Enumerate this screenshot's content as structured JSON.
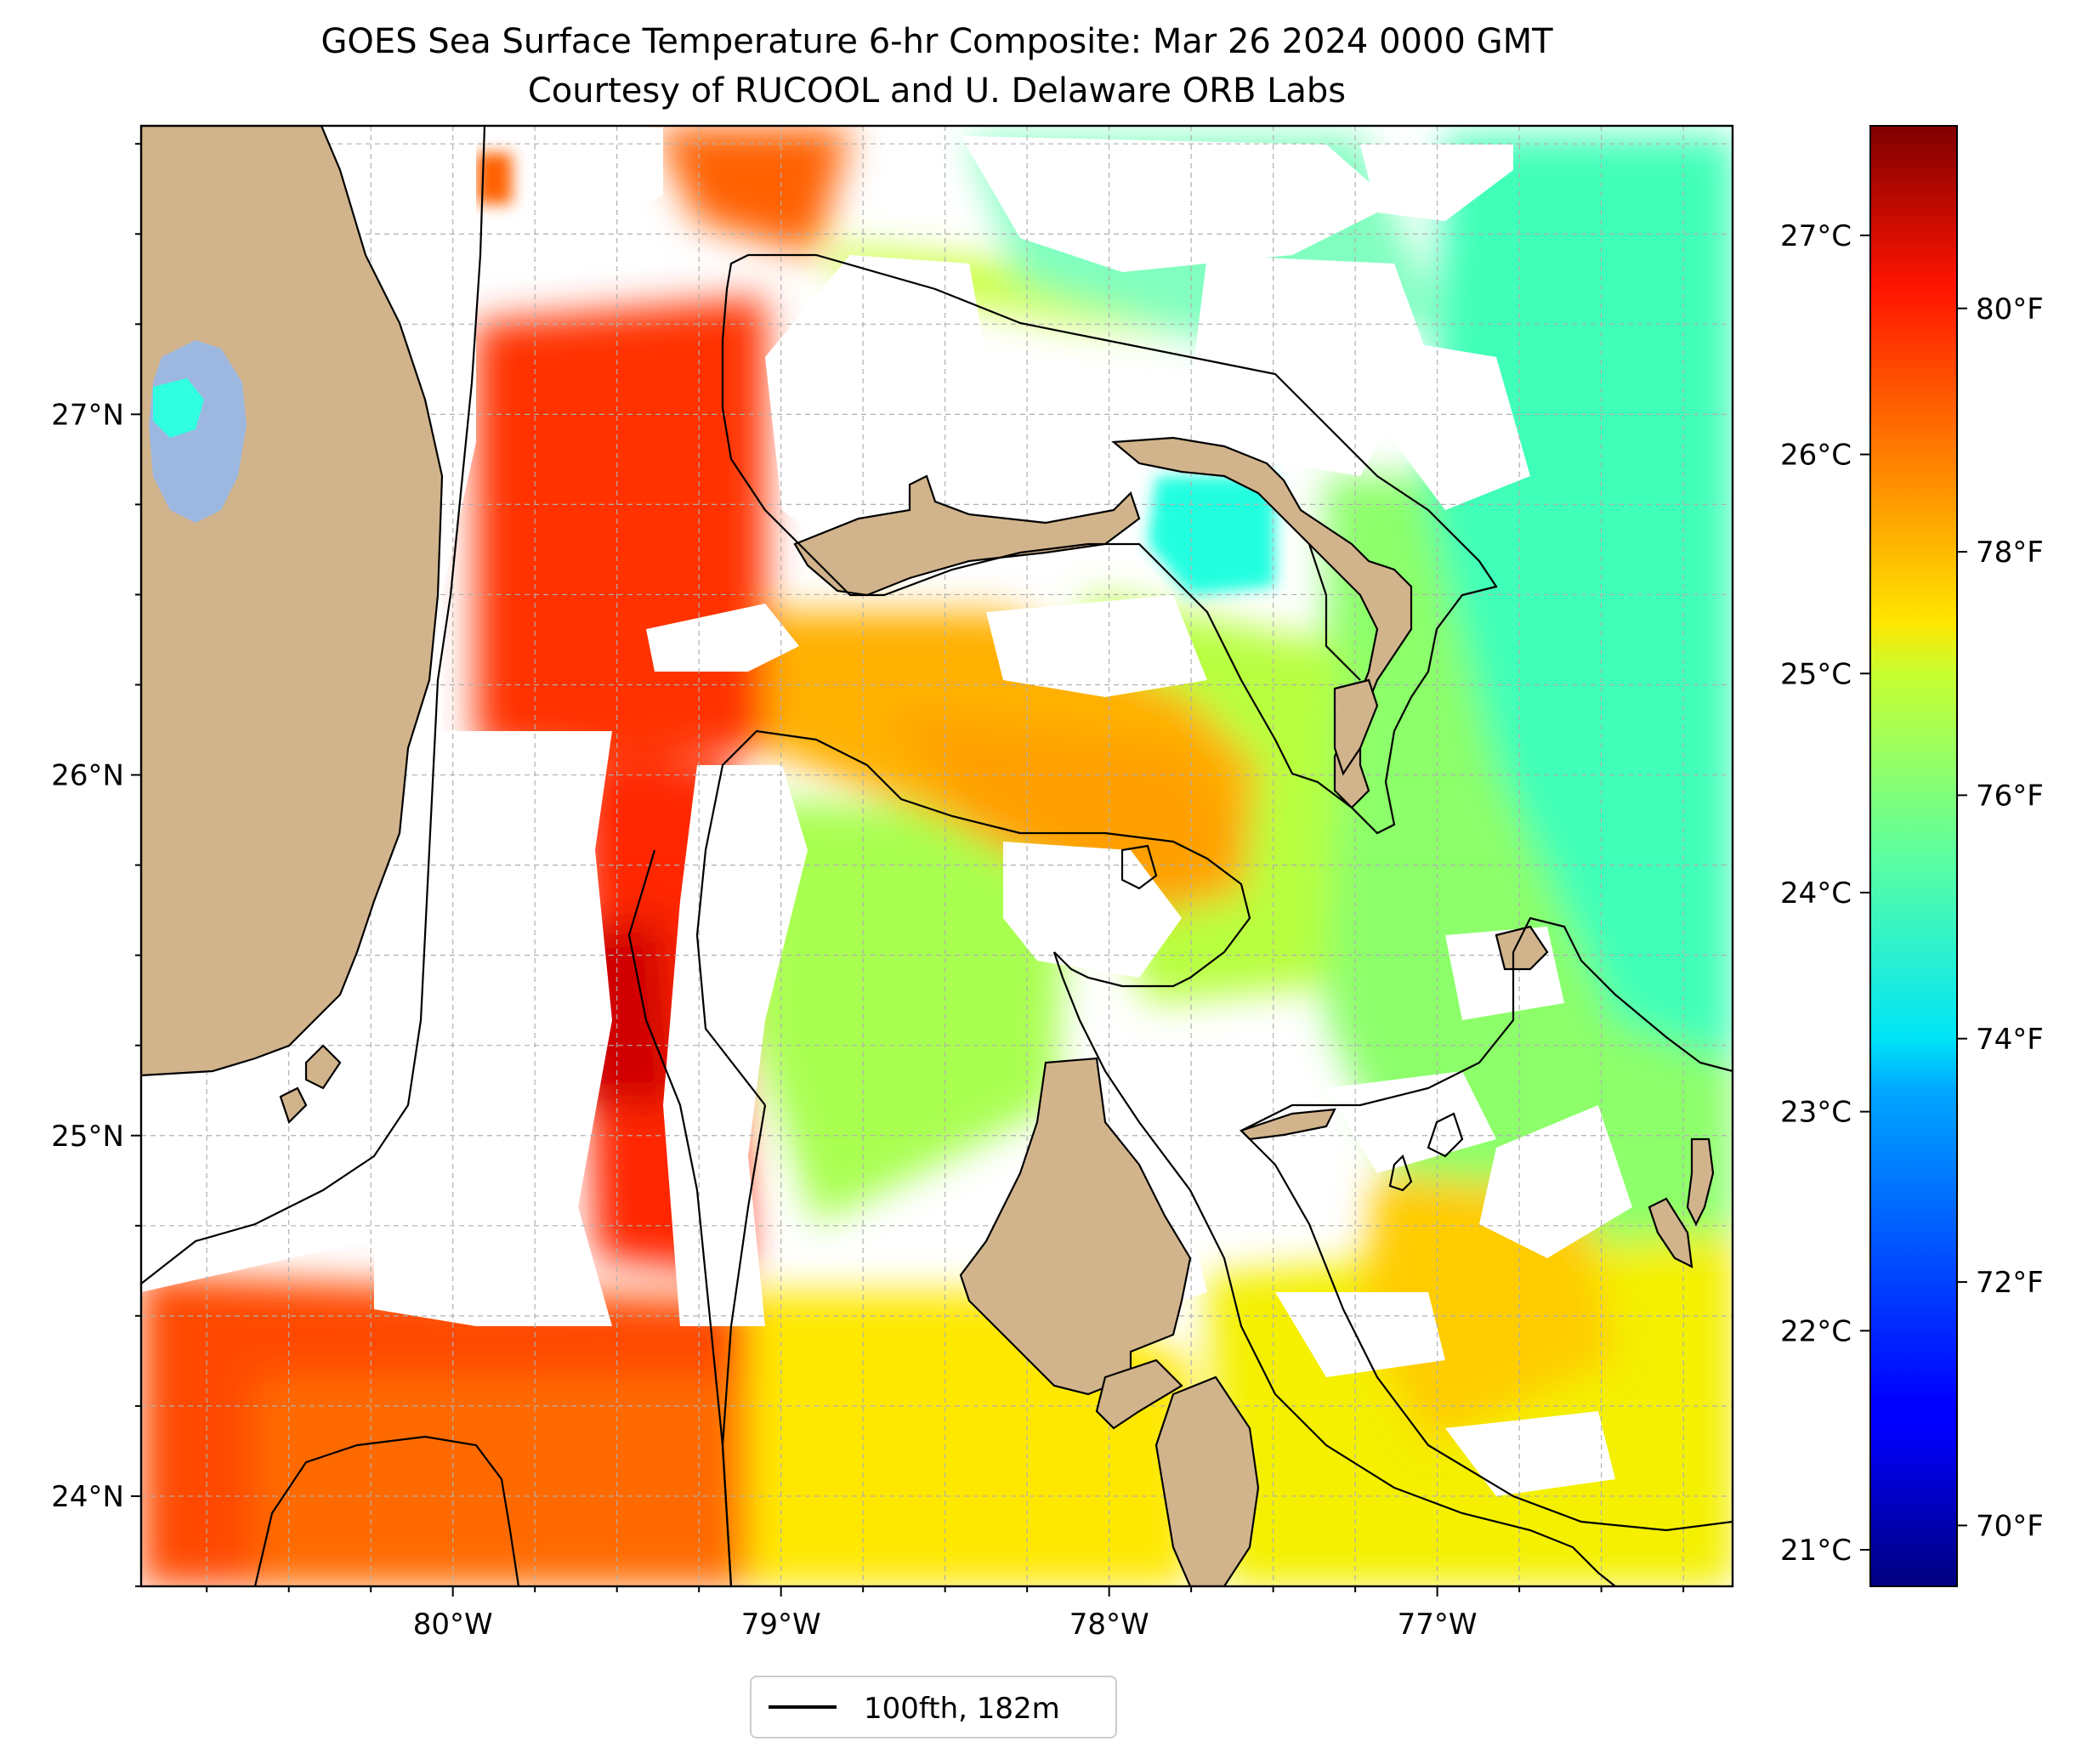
{
  "title": {
    "line1": "GOES Sea Surface Temperature 6-hr Composite: Mar 26 2024 0000 GMT",
    "line2": "Courtesy of RUCOOL and U. Delaware ORB Labs"
  },
  "map": {
    "lon_range": [
      -80.95,
      -76.1
    ],
    "lat_range": [
      23.75,
      27.8
    ],
    "lon_ticks": [
      {
        "value": -80,
        "label": "80°W"
      },
      {
        "value": -79,
        "label": "79°W"
      },
      {
        "value": -78,
        "label": "78°W"
      },
      {
        "value": -77,
        "label": "77°W"
      }
    ],
    "lat_ticks": [
      {
        "value": 27,
        "label": "27°N"
      },
      {
        "value": 26,
        "label": "26°N"
      },
      {
        "value": 25,
        "label": "25°N"
      },
      {
        "value": 24,
        "label": "24°N"
      }
    ],
    "gridlines": true,
    "colors": {
      "land": "#d2b48c",
      "lake": "#9cb8e0",
      "no_data": "#ffffff",
      "contour": "#000000"
    }
  },
  "colorbar": {
    "colormap": "jet",
    "range_f": [
      69.5,
      81.5
    ],
    "f_ticks": [
      {
        "value": 80,
        "label": "80°F"
      },
      {
        "value": 78,
        "label": "78°F"
      },
      {
        "value": 76,
        "label": "76°F"
      },
      {
        "value": 74,
        "label": "74°F"
      },
      {
        "value": 72,
        "label": "72°F"
      },
      {
        "value": 70,
        "label": "70°F"
      }
    ],
    "c_ticks": [
      {
        "value": 27,
        "label": "27°C"
      },
      {
        "value": 26,
        "label": "26°C"
      },
      {
        "value": 25,
        "label": "25°C"
      },
      {
        "value": 24,
        "label": "24°C"
      },
      {
        "value": 23,
        "label": "23°C"
      },
      {
        "value": 22,
        "label": "22°C"
      },
      {
        "value": 21,
        "label": "21°C"
      }
    ]
  },
  "legend": {
    "entries": [
      {
        "label": "100fth, 182m",
        "color": "#000000"
      }
    ],
    "placement": "bottom-center"
  }
}
